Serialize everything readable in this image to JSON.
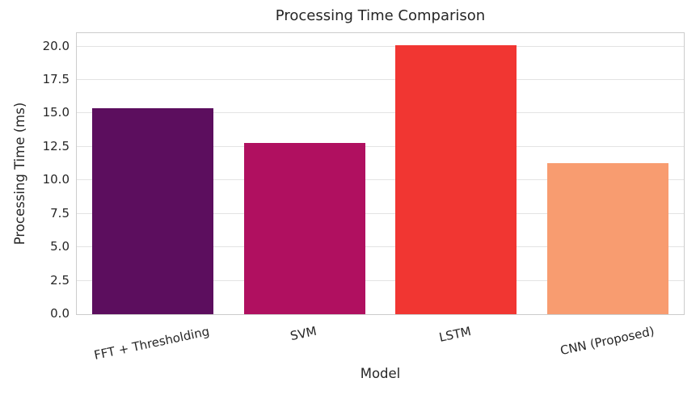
{
  "chart_data": {
    "type": "bar",
    "title": "Processing Time Comparison",
    "xlabel": "Model",
    "ylabel": "Processing Time (ms)",
    "categories": [
      "FFT + Thresholding",
      "SVM",
      "LSTM",
      "CNN (Proposed)"
    ],
    "values": [
      15.4,
      12.8,
      20.1,
      11.3
    ],
    "bar_colors": [
      "#5c0e5e",
      "#b01060",
      "#f13632",
      "#f89c70"
    ],
    "ylim": [
      0,
      21
    ],
    "yticks": [
      0.0,
      2.5,
      5.0,
      7.5,
      10.0,
      12.5,
      15.0,
      17.5,
      20.0
    ],
    "ytick_decimals": 1,
    "xtick_rotation_deg": 12,
    "grid": true,
    "legend_shown": false,
    "bar_width_fraction": 0.8,
    "colors": {
      "text": "#262626",
      "grid": "#e3e3e3",
      "spine": "#cccccc",
      "background": "#ffffff"
    }
  }
}
